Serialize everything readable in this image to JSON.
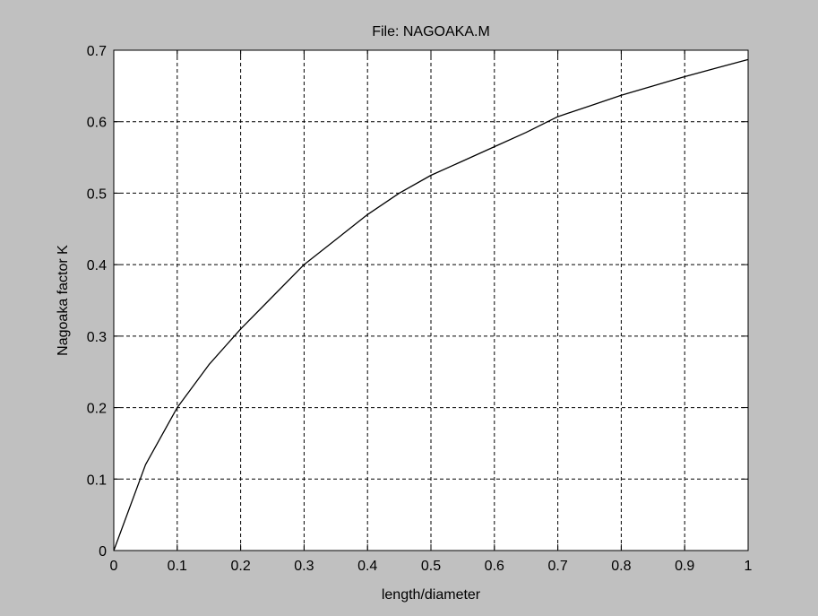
{
  "chart_data": {
    "type": "line",
    "title": "File: NAGOAKA.M",
    "xlabel": "length/diameter",
    "ylabel": "Nagoaka factor K",
    "xlim": [
      0,
      1
    ],
    "ylim": [
      0,
      0.7
    ],
    "xticks": [
      "0",
      "0.1",
      "0.2",
      "0.3",
      "0.4",
      "0.5",
      "0.6",
      "0.7",
      "0.8",
      "0.9",
      "1"
    ],
    "yticks": [
      "0",
      "0.1",
      "0.2",
      "0.3",
      "0.4",
      "0.5",
      "0.6",
      "0.7"
    ],
    "grid": true,
    "line_color": "#000000",
    "background_color": "#c0c0c0",
    "plot_background_color": "#ffffff",
    "series": [
      {
        "x": [
          0,
          0.05,
          0.1,
          0.15,
          0.2,
          0.25,
          0.3,
          0.35,
          0.4,
          0.45,
          0.5,
          0.55,
          0.6,
          0.65,
          0.7,
          0.75,
          0.8,
          0.85,
          0.9,
          0.95,
          1.0
        ],
        "values": [
          0,
          0.12,
          0.2,
          0.26,
          0.31,
          0.355,
          0.4,
          0.435,
          0.47,
          0.5,
          0.525,
          0.545,
          0.565,
          0.585,
          0.607,
          0.622,
          0.637,
          0.65,
          0.663,
          0.675,
          0.687
        ]
      }
    ]
  }
}
